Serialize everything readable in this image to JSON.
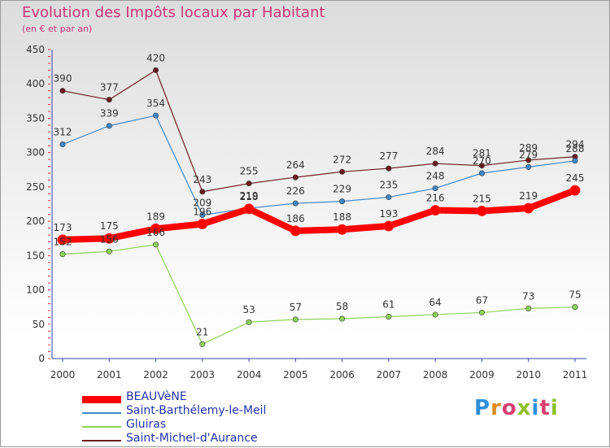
{
  "title": "Evolution des Impôts locaux par Habitant",
  "subtitle": "(en € et par an)",
  "brand": {
    "text": "Proxiti",
    "colors": [
      "#2f8fd8",
      "#e08a1e",
      "#8fbf2a",
      "#d84070"
    ]
  },
  "chart_data": {
    "type": "line",
    "title": "Evolution des Impôts locaux par Habitant",
    "subtitle": "(en € et par an)",
    "xlabel": "",
    "ylabel": "",
    "ylim": [
      0,
      450
    ],
    "yticks": [
      0,
      50,
      100,
      150,
      200,
      250,
      300,
      350,
      400,
      450
    ],
    "categories": [
      "2000",
      "2001",
      "2002",
      "2003",
      "2004",
      "2005",
      "2006",
      "2007",
      "2008",
      "2009",
      "2010",
      "2011"
    ],
    "series": [
      {
        "name": "Saint-Michel-d'Aurance",
        "color": "#6b1a22",
        "thick": false,
        "values": [
          390,
          377,
          420,
          243,
          255,
          264,
          272,
          277,
          284,
          281,
          289,
          294
        ]
      },
      {
        "name": "Saint-Barthélemy-le-Meil",
        "color": "#3f88c8",
        "thick": false,
        "values": [
          312,
          339,
          354,
          209,
          219,
          226,
          229,
          235,
          248,
          270,
          279,
          288
        ]
      },
      {
        "name": "Gluiras",
        "color": "#8ed35a",
        "thick": false,
        "values": [
          152,
          156,
          166,
          21,
          53,
          57,
          58,
          61,
          64,
          67,
          73,
          75
        ]
      },
      {
        "name": "BEAUVèNE",
        "color": "#ff0000",
        "thick": true,
        "values": [
          173,
          175,
          189,
          196,
          218,
          186,
          188,
          193,
          216,
          215,
          219,
          245
        ]
      }
    ],
    "legend": [
      "BEAUVèNE",
      "Saint-Barthélemy-le-Meil",
      "Gluiras",
      "Saint-Michel-d'Aurance"
    ],
    "legend_position": "bottom-left",
    "grid": false
  }
}
